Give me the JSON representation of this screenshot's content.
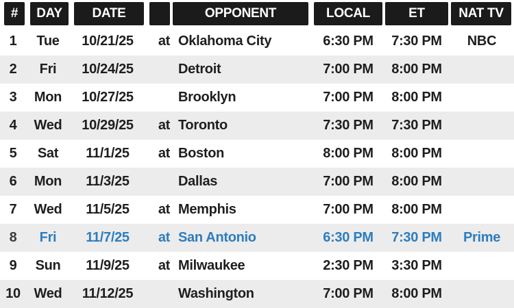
{
  "table": {
    "colors": {
      "header_bg": "#1b1b1b",
      "header_text": "#ffffff",
      "row_bg": "#ffffff",
      "row_alt_bg": "#ececec",
      "body_text": "#1e1e1e",
      "highlight_text": "#2d7dbe"
    },
    "columns": [
      {
        "key": "num",
        "label": "#"
      },
      {
        "key": "day",
        "label": "DAY"
      },
      {
        "key": "date",
        "label": "DATE"
      },
      {
        "key": "at",
        "label": ""
      },
      {
        "key": "opponent",
        "label": "OPPONENT"
      },
      {
        "key": "local",
        "label": "LOCAL"
      },
      {
        "key": "et",
        "label": "ET"
      },
      {
        "key": "nattv",
        "label": "NAT TV"
      }
    ],
    "rows": [
      {
        "num": "1",
        "day": "Tue",
        "date": "10/21/25",
        "at": "at",
        "opponent": "Oklahoma City",
        "local": "6:30 PM",
        "et": "7:30 PM",
        "nattv": "NBC",
        "highlight": false
      },
      {
        "num": "2",
        "day": "Fri",
        "date": "10/24/25",
        "at": "",
        "opponent": "Detroit",
        "local": "7:00 PM",
        "et": "8:00 PM",
        "nattv": "",
        "highlight": false
      },
      {
        "num": "3",
        "day": "Mon",
        "date": "10/27/25",
        "at": "",
        "opponent": "Brooklyn",
        "local": "7:00 PM",
        "et": "8:00 PM",
        "nattv": "",
        "highlight": false
      },
      {
        "num": "4",
        "day": "Wed",
        "date": "10/29/25",
        "at": "at",
        "opponent": "Toronto",
        "local": "7:30 PM",
        "et": "7:30 PM",
        "nattv": "",
        "highlight": false
      },
      {
        "num": "5",
        "day": "Sat",
        "date": "11/1/25",
        "at": "at",
        "opponent": "Boston",
        "local": "8:00 PM",
        "et": "8:00 PM",
        "nattv": "",
        "highlight": false
      },
      {
        "num": "6",
        "day": "Mon",
        "date": "11/3/25",
        "at": "",
        "opponent": "Dallas",
        "local": "7:00 PM",
        "et": "8:00 PM",
        "nattv": "",
        "highlight": false
      },
      {
        "num": "7",
        "day": "Wed",
        "date": "11/5/25",
        "at": "at",
        "opponent": "Memphis",
        "local": "7:00 PM",
        "et": "8:00 PM",
        "nattv": "",
        "highlight": false
      },
      {
        "num": "8",
        "day": "Fri",
        "date": "11/7/25",
        "at": "at",
        "opponent": "San Antonio",
        "local": "6:30 PM",
        "et": "7:30 PM",
        "nattv": "Prime",
        "highlight": true
      },
      {
        "num": "9",
        "day": "Sun",
        "date": "11/9/25",
        "at": "at",
        "opponent": "Milwaukee",
        "local": "2:30 PM",
        "et": "3:30 PM",
        "nattv": "",
        "highlight": false
      },
      {
        "num": "10",
        "day": "Wed",
        "date": "11/12/25",
        "at": "",
        "opponent": "Washington",
        "local": "7:00 PM",
        "et": "8:00 PM",
        "nattv": "",
        "highlight": false
      }
    ]
  }
}
